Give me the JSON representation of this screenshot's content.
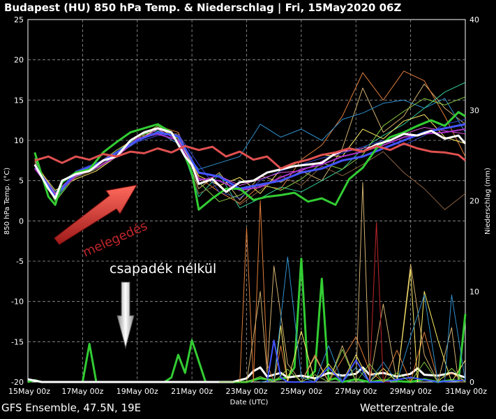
{
  "chart_data": {
    "type": "line",
    "title": "Budapest  (HU)  850 hPa Temp. & Niederschlag | Fri, 15May2020 06Z",
    "xlabel": "Date (UTC)",
    "ylabel": "850 hPa Temp. (°C)",
    "y2label": "Niederschlag (mm)",
    "ylim": [
      -20,
      25
    ],
    "y2lim": [
      0,
      40
    ],
    "yticks": [
      25,
      20,
      15,
      10,
      5,
      0,
      -5,
      -10,
      -15,
      -20
    ],
    "y2ticks": [
      40,
      30,
      20,
      10,
      0
    ],
    "xlim_days": [
      0,
      16
    ],
    "xticks": [
      {
        "day": 0,
        "label": "15May 00z"
      },
      {
        "day": 2,
        "label": "17May 00z"
      },
      {
        "day": 4,
        "label": "19May 00z"
      },
      {
        "day": 6,
        "label": "21May 00z"
      },
      {
        "day": 8,
        "label": "23May 00z"
      },
      {
        "day": 10,
        "label": "25May 00z"
      },
      {
        "day": 12,
        "label": "27May 00z"
      },
      {
        "day": 14,
        "label": "29May 00z"
      },
      {
        "day": 16,
        "label": "31May 00z"
      }
    ],
    "grid": true,
    "series": [
      {
        "color": "#e05050",
        "width": 3,
        "x": [
          0.25,
          0.75,
          1.25,
          1.75,
          2.25,
          2.75,
          3.25,
          3.75,
          4.25,
          4.75,
          5.25,
          5.75,
          6.25,
          6.75,
          7.25,
          7.75,
          8.25,
          8.75,
          9.25,
          9.75,
          10.25,
          10.75,
          11.25,
          11.75,
          12.25,
          12.75,
          13.25,
          13.75,
          14.25,
          14.75,
          15.25,
          15.75,
          16
        ],
        "y": [
          7.5,
          8,
          7.2,
          8,
          7.6,
          8.3,
          8,
          8.6,
          8.4,
          9,
          8.5,
          9.3,
          8.8,
          9.2,
          8,
          8.6,
          7.6,
          8,
          6.5,
          7.2,
          7.6,
          8.2,
          8.5,
          9,
          8.6,
          9.3,
          8.8,
          9.6,
          9,
          8.6,
          8.5,
          8.2,
          7.5
        ]
      },
      {
        "color": "#ffffff",
        "width": 3,
        "x": [
          0.25,
          0.75,
          1,
          1.25,
          1.75,
          2.25,
          2.75,
          3.25,
          3.75,
          4.25,
          4.75,
          5.25,
          5.75,
          6,
          6.25,
          6.75,
          7.25,
          7.75,
          8.25,
          8.75,
          9.25,
          9.75,
          10.25,
          10.75,
          11.25,
          11.75,
          12.25,
          12.75,
          13.25,
          13.75,
          14.25,
          14.75,
          15.25,
          15.75,
          16
        ],
        "y": [
          7,
          4,
          2.8,
          5,
          5.8,
          6.2,
          7.5,
          8,
          10,
          11,
          11.5,
          11,
          8,
          7,
          4.6,
          5.2,
          3.6,
          4.8,
          5,
          6,
          6.4,
          6.8,
          7,
          7.2,
          8.4,
          9,
          8.6,
          9.5,
          10,
          10.8,
          10.6,
          11.2,
          10.2,
          10.6,
          9.6
        ]
      },
      {
        "color": "#33cc33",
        "width": 3,
        "x": [
          0.25,
          0.75,
          1,
          1.25,
          1.75,
          2.25,
          2.75,
          3.25,
          3.75,
          4.25,
          4.75,
          5.25,
          5.75,
          6,
          6.25,
          6.75,
          7.25,
          7.75,
          8.25,
          8.75,
          9.25,
          9.75,
          10.25,
          10.75,
          11.25,
          11.75,
          12.25,
          12.75,
          13.25,
          13.75,
          14.25,
          14.75,
          15.25,
          15.75,
          16
        ],
        "y": [
          8.5,
          3,
          2,
          4.8,
          6,
          6.4,
          8.5,
          9.8,
          11,
          11.5,
          12,
          11,
          8,
          6,
          1.4,
          2.8,
          4,
          4,
          2.6,
          3,
          3.2,
          3.5,
          2.4,
          2.8,
          2,
          5.2,
          6.6,
          9,
          10.4,
          11,
          11.8,
          12.5,
          11.8,
          13.5,
          13
        ]
      },
      {
        "color": "#4455ff",
        "width": 3,
        "x": [
          0.25,
          1,
          1.75,
          2.5,
          3.25,
          4,
          4.75,
          5.5,
          6.25,
          7,
          7.75,
          8.5,
          9.25,
          10,
          10.75,
          11.5,
          12.25,
          13,
          13.75,
          14.5,
          15.25,
          16
        ],
        "y": [
          7,
          3,
          6,
          7,
          8.5,
          10,
          11,
          10.5,
          6,
          5.5,
          4,
          4.5,
          5,
          6,
          6.5,
          7.5,
          8,
          9,
          10,
          11,
          11.5,
          12
        ]
      },
      {
        "color": "#aa33cc",
        "width": 2,
        "x": [
          0.25,
          1,
          1.75,
          2.5,
          3.25,
          4,
          4.75,
          5.5,
          6.25,
          7,
          7.75,
          8.5,
          9.25,
          10,
          10.75,
          11.5,
          12.25,
          13,
          13.75,
          14.5,
          15.25,
          16
        ],
        "y": [
          6.5,
          3.2,
          5.6,
          6.6,
          8,
          10.2,
          10.8,
          10,
          5.2,
          5,
          3.8,
          4.2,
          5.4,
          6.4,
          7,
          8,
          8.6,
          9.4,
          10.4,
          10.8,
          11,
          11.4
        ]
      },
      {
        "color": "#d2b070",
        "width": 1,
        "x": [
          0.25,
          1,
          1.75,
          2.5,
          3.25,
          4,
          4.75,
          5.5,
          6.25,
          7,
          7.75,
          8.5,
          9.25,
          10,
          10.75,
          11.5,
          12.25,
          13,
          13.75,
          14.5,
          15.25,
          16
        ],
        "y": [
          7.2,
          3,
          5.5,
          6.6,
          8.2,
          10,
          11.4,
          10.6,
          4,
          6,
          2.6,
          5.6,
          4.8,
          6.2,
          5,
          9,
          16.5,
          11,
          13,
          17,
          14,
          12
        ]
      },
      {
        "color": "#e07d3a",
        "width": 1,
        "x": [
          0.25,
          1,
          1.75,
          2.5,
          3.25,
          4,
          4.75,
          5.5,
          6.25,
          7,
          7.75,
          8.5,
          9.25,
          10,
          10.75,
          11.5,
          12.25,
          13,
          13.75,
          14.5,
          15.25,
          16
        ],
        "y": [
          7.4,
          3.4,
          5.8,
          7,
          8.8,
          10.4,
          11.8,
          11,
          5.4,
          3.6,
          2.2,
          4.4,
          4,
          7.6,
          9.4,
          13,
          18.4,
          15,
          18.6,
          17.4,
          13,
          8
        ]
      },
      {
        "color": "#2f8fcc",
        "width": 1,
        "x": [
          0.25,
          1,
          1.75,
          2.5,
          3.25,
          4,
          4.75,
          5.5,
          6.25,
          7,
          7.75,
          8.5,
          9.25,
          10,
          10.75,
          11.5,
          12.25,
          13,
          13.75,
          14.5,
          15.25,
          16
        ],
        "y": [
          6.8,
          3.6,
          5.4,
          6.8,
          8.6,
          10.4,
          11,
          9.6,
          6.4,
          7.2,
          8,
          12,
          10.4,
          11.4,
          10,
          12.6,
          13.4,
          14.6,
          15,
          14,
          15.2,
          11
        ]
      },
      {
        "color": "#33cc99",
        "width": 1,
        "x": [
          0.25,
          1,
          1.75,
          2.5,
          3.25,
          4,
          4.75,
          5.5,
          6.25,
          7,
          7.75,
          8.5,
          9.25,
          10,
          10.75,
          11.5,
          12.25,
          13,
          13.75,
          14.5,
          15.25,
          16
        ],
        "y": [
          7.6,
          2.6,
          5.8,
          6.4,
          8.4,
          10.6,
          11.2,
          10.4,
          3,
          5.8,
          1.6,
          2.8,
          4.2,
          3.6,
          5,
          6.4,
          9,
          10.6,
          12,
          14,
          16,
          17.2
        ]
      },
      {
        "color": "#ffee66",
        "width": 1,
        "x": [
          0.25,
          1,
          1.75,
          2.5,
          3.25,
          4,
          4.75,
          5.5,
          6.25,
          7,
          7.75,
          8.5,
          9.25,
          10,
          10.75,
          11.5,
          12.25,
          13,
          13.75,
          14.5,
          15.25,
          16
        ],
        "y": [
          7,
          3.8,
          5.2,
          6.2,
          8,
          10,
          11.6,
          10.2,
          5.6,
          4.4,
          5.4,
          3.4,
          6.4,
          7.4,
          8.2,
          8,
          11.4,
          10.2,
          12.4,
          13.2,
          10.4,
          9.6
        ]
      },
      {
        "color": "#3344cc",
        "width": 1,
        "x": [
          0.25,
          1,
          1.75,
          2.5,
          3.25,
          4,
          4.75,
          5.5,
          6.25,
          7,
          7.75,
          8.5,
          9.25,
          10,
          10.75,
          11.5,
          12.25,
          13,
          13.75,
          14.5,
          15.25,
          16
        ],
        "y": [
          6.6,
          3,
          6.2,
          7.2,
          8.2,
          9.8,
          10.6,
          10.8,
          7,
          3.6,
          2.8,
          5,
          6.2,
          7,
          7.8,
          8.4,
          9.2,
          10,
          9.4,
          10.6,
          12,
          12.6
        ]
      },
      {
        "color": "#88cc44",
        "width": 1,
        "x": [
          0.25,
          1,
          1.75,
          2.5,
          3.25,
          4,
          4.75,
          5.5,
          6.25,
          7,
          7.75,
          8.5,
          9.25,
          10,
          10.75,
          11.5,
          12.25,
          13,
          13.75,
          14.5,
          15.25,
          16
        ],
        "y": [
          7.8,
          2.4,
          5.6,
          6.8,
          8.8,
          10.2,
          11.8,
          10.2,
          4.8,
          2.4,
          3.2,
          4.6,
          3.8,
          5.2,
          7.2,
          6.4,
          8.2,
          11.8,
          13.6,
          15.2,
          14.4,
          15.4
        ]
      },
      {
        "color": "#8a6040",
        "width": 1,
        "x": [
          0.25,
          1,
          1.75,
          2.5,
          3.25,
          4,
          4.75,
          5.5,
          6.25,
          7,
          7.75,
          8.5,
          9.25,
          10,
          10.75,
          11.5,
          12.25,
          13,
          13.75,
          14.5,
          15.25,
          16
        ],
        "y": [
          7.2,
          3.2,
          5.4,
          6.4,
          8,
          10.4,
          11,
          10.8,
          3.4,
          4.6,
          2,
          3.8,
          5.6,
          4.4,
          6.8,
          5.6,
          7,
          8.6,
          6,
          4,
          1.4,
          3.4
        ]
      },
      {
        "color": "#dd55dd",
        "width": 1,
        "x": [
          0.25,
          1,
          1.75,
          2.5,
          3.25,
          4,
          4.75,
          5.5,
          6.25,
          7,
          7.75,
          8.5,
          9.25,
          10,
          10.75,
          11.5,
          12.25,
          13,
          13.75,
          14.5,
          15.25,
          16
        ],
        "y": [
          7,
          3.4,
          6,
          6.8,
          8.4,
          10,
          11.4,
          10,
          5,
          5.6,
          4.4,
          5.2,
          6,
          6.2,
          7.4,
          8.6,
          9,
          9.6,
          10.8,
          11.6,
          11.2,
          10.8
        ]
      }
    ],
    "precip_series": [
      {
        "color": "#33cc33",
        "width": 3,
        "x": [
          0,
          0.25,
          0.5,
          1,
          1.5,
          2,
          2.25,
          2.5,
          3,
          4,
          5,
          5.25,
          5.5,
          5.75,
          6,
          6.5,
          7,
          8,
          8.5,
          9,
          9.5,
          9.75,
          10,
          10.25,
          10.5,
          10.75,
          11,
          11.25,
          11.5,
          12,
          12.5,
          13,
          13.5,
          14,
          14.5,
          15,
          15.5,
          15.75,
          16
        ],
        "y": [
          0,
          0.2,
          0,
          0,
          0,
          0,
          4.2,
          0,
          0,
          0,
          0,
          0.5,
          3,
          1,
          4.6,
          0,
          0,
          0,
          0.4,
          0.2,
          0.5,
          1.6,
          13.6,
          0.4,
          1.2,
          11.4,
          0.2,
          0.4,
          0,
          0.3,
          0,
          0.2,
          0.1,
          0,
          0.3,
          0,
          0.2,
          0.1,
          7.5
        ]
      },
      {
        "color": "#ffffff",
        "width": 3,
        "x": [
          0,
          0.5,
          1,
          2,
          3,
          4,
          5,
          6,
          7,
          7.5,
          8,
          8.25,
          8.5,
          8.75,
          9,
          9.25,
          9.5,
          10,
          10.5,
          11,
          11.5,
          12,
          12.25,
          12.5,
          13,
          13.5,
          14,
          14.25,
          14.5,
          15,
          15.5,
          16
        ],
        "y": [
          0.3,
          0,
          0,
          0,
          0,
          0,
          0,
          0,
          0,
          0,
          0.4,
          1.2,
          1.6,
          0.6,
          0.8,
          1,
          0.5,
          0.7,
          0.4,
          1,
          0.7,
          0.9,
          1.6,
          0.8,
          1,
          0.6,
          0.9,
          1.5,
          0.8,
          0.7,
          1,
          0.5
        ]
      },
      {
        "color": "#e07d3a",
        "width": 1,
        "x": [
          7.75,
          8,
          8.25,
          8.5,
          8.75,
          9,
          9.25,
          9.5,
          10,
          10.5,
          11,
          11.5,
          12,
          12.5,
          13,
          13.5,
          14,
          14.5,
          15,
          15.5,
          16
        ],
        "y": [
          0,
          17,
          0,
          20,
          2,
          0,
          4,
          0,
          0,
          3,
          0,
          2.5,
          5,
          1.2,
          0,
          3.5,
          0,
          5.5,
          0.2,
          1,
          0
        ]
      },
      {
        "color": "#d2b070",
        "width": 1,
        "x": [
          8,
          8.5,
          8.75,
          9,
          9.5,
          10,
          10.5,
          11,
          11.5,
          12,
          12.25,
          12.5,
          13,
          13.5,
          14,
          14.5,
          15,
          15.5,
          15.75,
          16
        ],
        "y": [
          0,
          10,
          1,
          12.8,
          2,
          0,
          2.8,
          0,
          4,
          0,
          22,
          0,
          8.6,
          0,
          13,
          3,
          0,
          6,
          0,
          0
        ]
      },
      {
        "color": "#ffee66",
        "width": 1,
        "x": [
          9,
          9.25,
          9.5,
          10,
          10.5,
          11,
          11.5,
          12,
          12.5,
          13,
          13.5,
          14,
          14.25,
          14.5,
          15,
          15.5,
          16
        ],
        "y": [
          0,
          6.2,
          0,
          5.6,
          0,
          2,
          0,
          3,
          0,
          1.5,
          0,
          12.4,
          0,
          10,
          4.6,
          0,
          2.4
        ]
      },
      {
        "color": "#2f8fcc",
        "width": 1,
        "x": [
          8.5,
          9,
          9.5,
          10,
          10.5,
          11,
          11.5,
          12,
          12.5,
          13,
          13.5,
          14,
          14.5,
          15,
          15.25,
          15.5,
          16
        ],
        "y": [
          0,
          0.2,
          13.8,
          0.5,
          0,
          4,
          0,
          1.6,
          0,
          2.2,
          0,
          5,
          9.6,
          0,
          0.2,
          9.6,
          0.1
        ]
      },
      {
        "color": "#4455ff",
        "width": 2,
        "x": [
          8.75,
          9,
          9.25,
          9.5,
          10,
          10.5,
          11,
          11.5,
          12,
          12.5,
          13,
          14,
          15,
          16
        ],
        "y": [
          0,
          4.6,
          0.5,
          0,
          0,
          0,
          1.6,
          0,
          2.4,
          0,
          0,
          0.5,
          0,
          0.2
        ]
      },
      {
        "color": "#c0262b",
        "width": 1,
        "x": [
          12.5,
          12.75,
          13,
          13.25
        ],
        "y": [
          0,
          17.6,
          0,
          0
        ]
      },
      {
        "color": "#88cc44",
        "width": 1,
        "x": [
          7,
          7.5,
          8,
          8.5,
          9,
          9.5,
          10,
          10.5,
          11,
          11.5,
          12,
          12.5,
          13,
          13.5,
          14,
          14.5,
          15,
          15.5,
          16
        ],
        "y": [
          0,
          0,
          0,
          0.6,
          0,
          1.4,
          0,
          0.8,
          0,
          3.6,
          0,
          2,
          0,
          1,
          0,
          2.2,
          0,
          1.5,
          0
        ]
      }
    ],
    "annotations": [
      {
        "text": "melegedés"
      },
      {
        "text": "csapadék nélkül"
      }
    ]
  },
  "footer": {
    "left": "GFS Ensemble, 47.5N, 19E",
    "right": "Wetterzentrale.de"
  }
}
